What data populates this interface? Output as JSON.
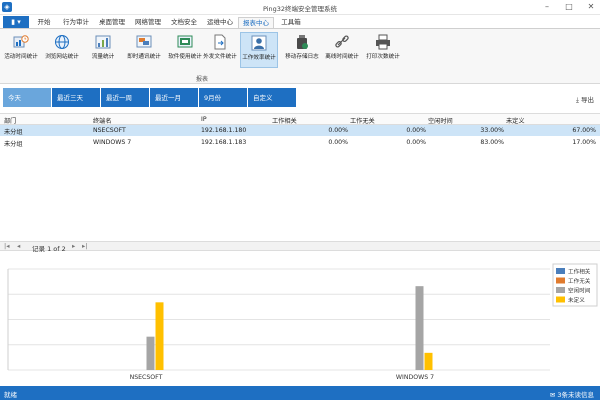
{
  "window": {
    "title": "Ping32终端安全管理系统"
  },
  "ribbon": {
    "tabs": [
      "开始",
      "行为审计",
      "桌面管理",
      "网络管理",
      "文档安全",
      "运维中心",
      "报表中心",
      "工具箱"
    ],
    "active_tab": "报表中心",
    "buttons": [
      {
        "label": "活动时间统计",
        "icon": "clock-chart-icon"
      },
      {
        "label": "浏览网站统计",
        "icon": "globe-icon"
      },
      {
        "label": "流量统计",
        "icon": "traffic-chart-icon"
      },
      {
        "label": "即时通讯统计",
        "icon": "chat-icon"
      },
      {
        "label": "软件使用统计",
        "icon": "software-icon"
      },
      {
        "label": "外发文件统计",
        "icon": "file-out-icon"
      },
      {
        "label": "工作效率统计",
        "icon": "user-efficiency-icon"
      },
      {
        "label": "移动存储日志",
        "icon": "usb-icon"
      },
      {
        "label": "离线时间统计",
        "icon": "link-icon"
      },
      {
        "label": "打印次数统计",
        "icon": "printer-icon"
      }
    ],
    "group_label": "报表"
  },
  "filters": {
    "buttons": [
      "今天",
      "最近三天",
      "最近一周",
      "最近一月",
      "9月份",
      "自定义"
    ],
    "active": "今天",
    "export_label": "导出"
  },
  "table": {
    "columns": [
      "部门",
      "终端名",
      "IP",
      "工作相关",
      "工作无关",
      "空闲时间",
      "未定义"
    ],
    "rows": [
      [
        "未分组",
        "NSECSOFT",
        "192.168.1.180",
        "0.00%",
        "0.00%",
        "33.00%",
        "67.00%"
      ],
      [
        "未分组",
        "WINDOWS 7",
        "192.168.1.183",
        "0.00%",
        "0.00%",
        "83.00%",
        "17.00%"
      ]
    ]
  },
  "pager": {
    "text": "记录 1 of 2"
  },
  "chart_data": {
    "type": "bar",
    "categories": [
      "NSECSOFT",
      "WINDOWS 7"
    ],
    "series": [
      {
        "name": "工作相关",
        "values": [
          0,
          0
        ],
        "color": "#4a7ebb"
      },
      {
        "name": "工作无关",
        "values": [
          0,
          0
        ],
        "color": "#e07b2e"
      },
      {
        "name": "空闲时间",
        "values": [
          33,
          83
        ],
        "color": "#a5a5a5"
      },
      {
        "name": "未定义",
        "values": [
          67,
          17
        ],
        "color": "#ffc000"
      }
    ],
    "ylim": [
      0,
      100
    ],
    "legend": "top-right"
  },
  "status": {
    "text": "就绪",
    "message": "3条未读信息"
  }
}
